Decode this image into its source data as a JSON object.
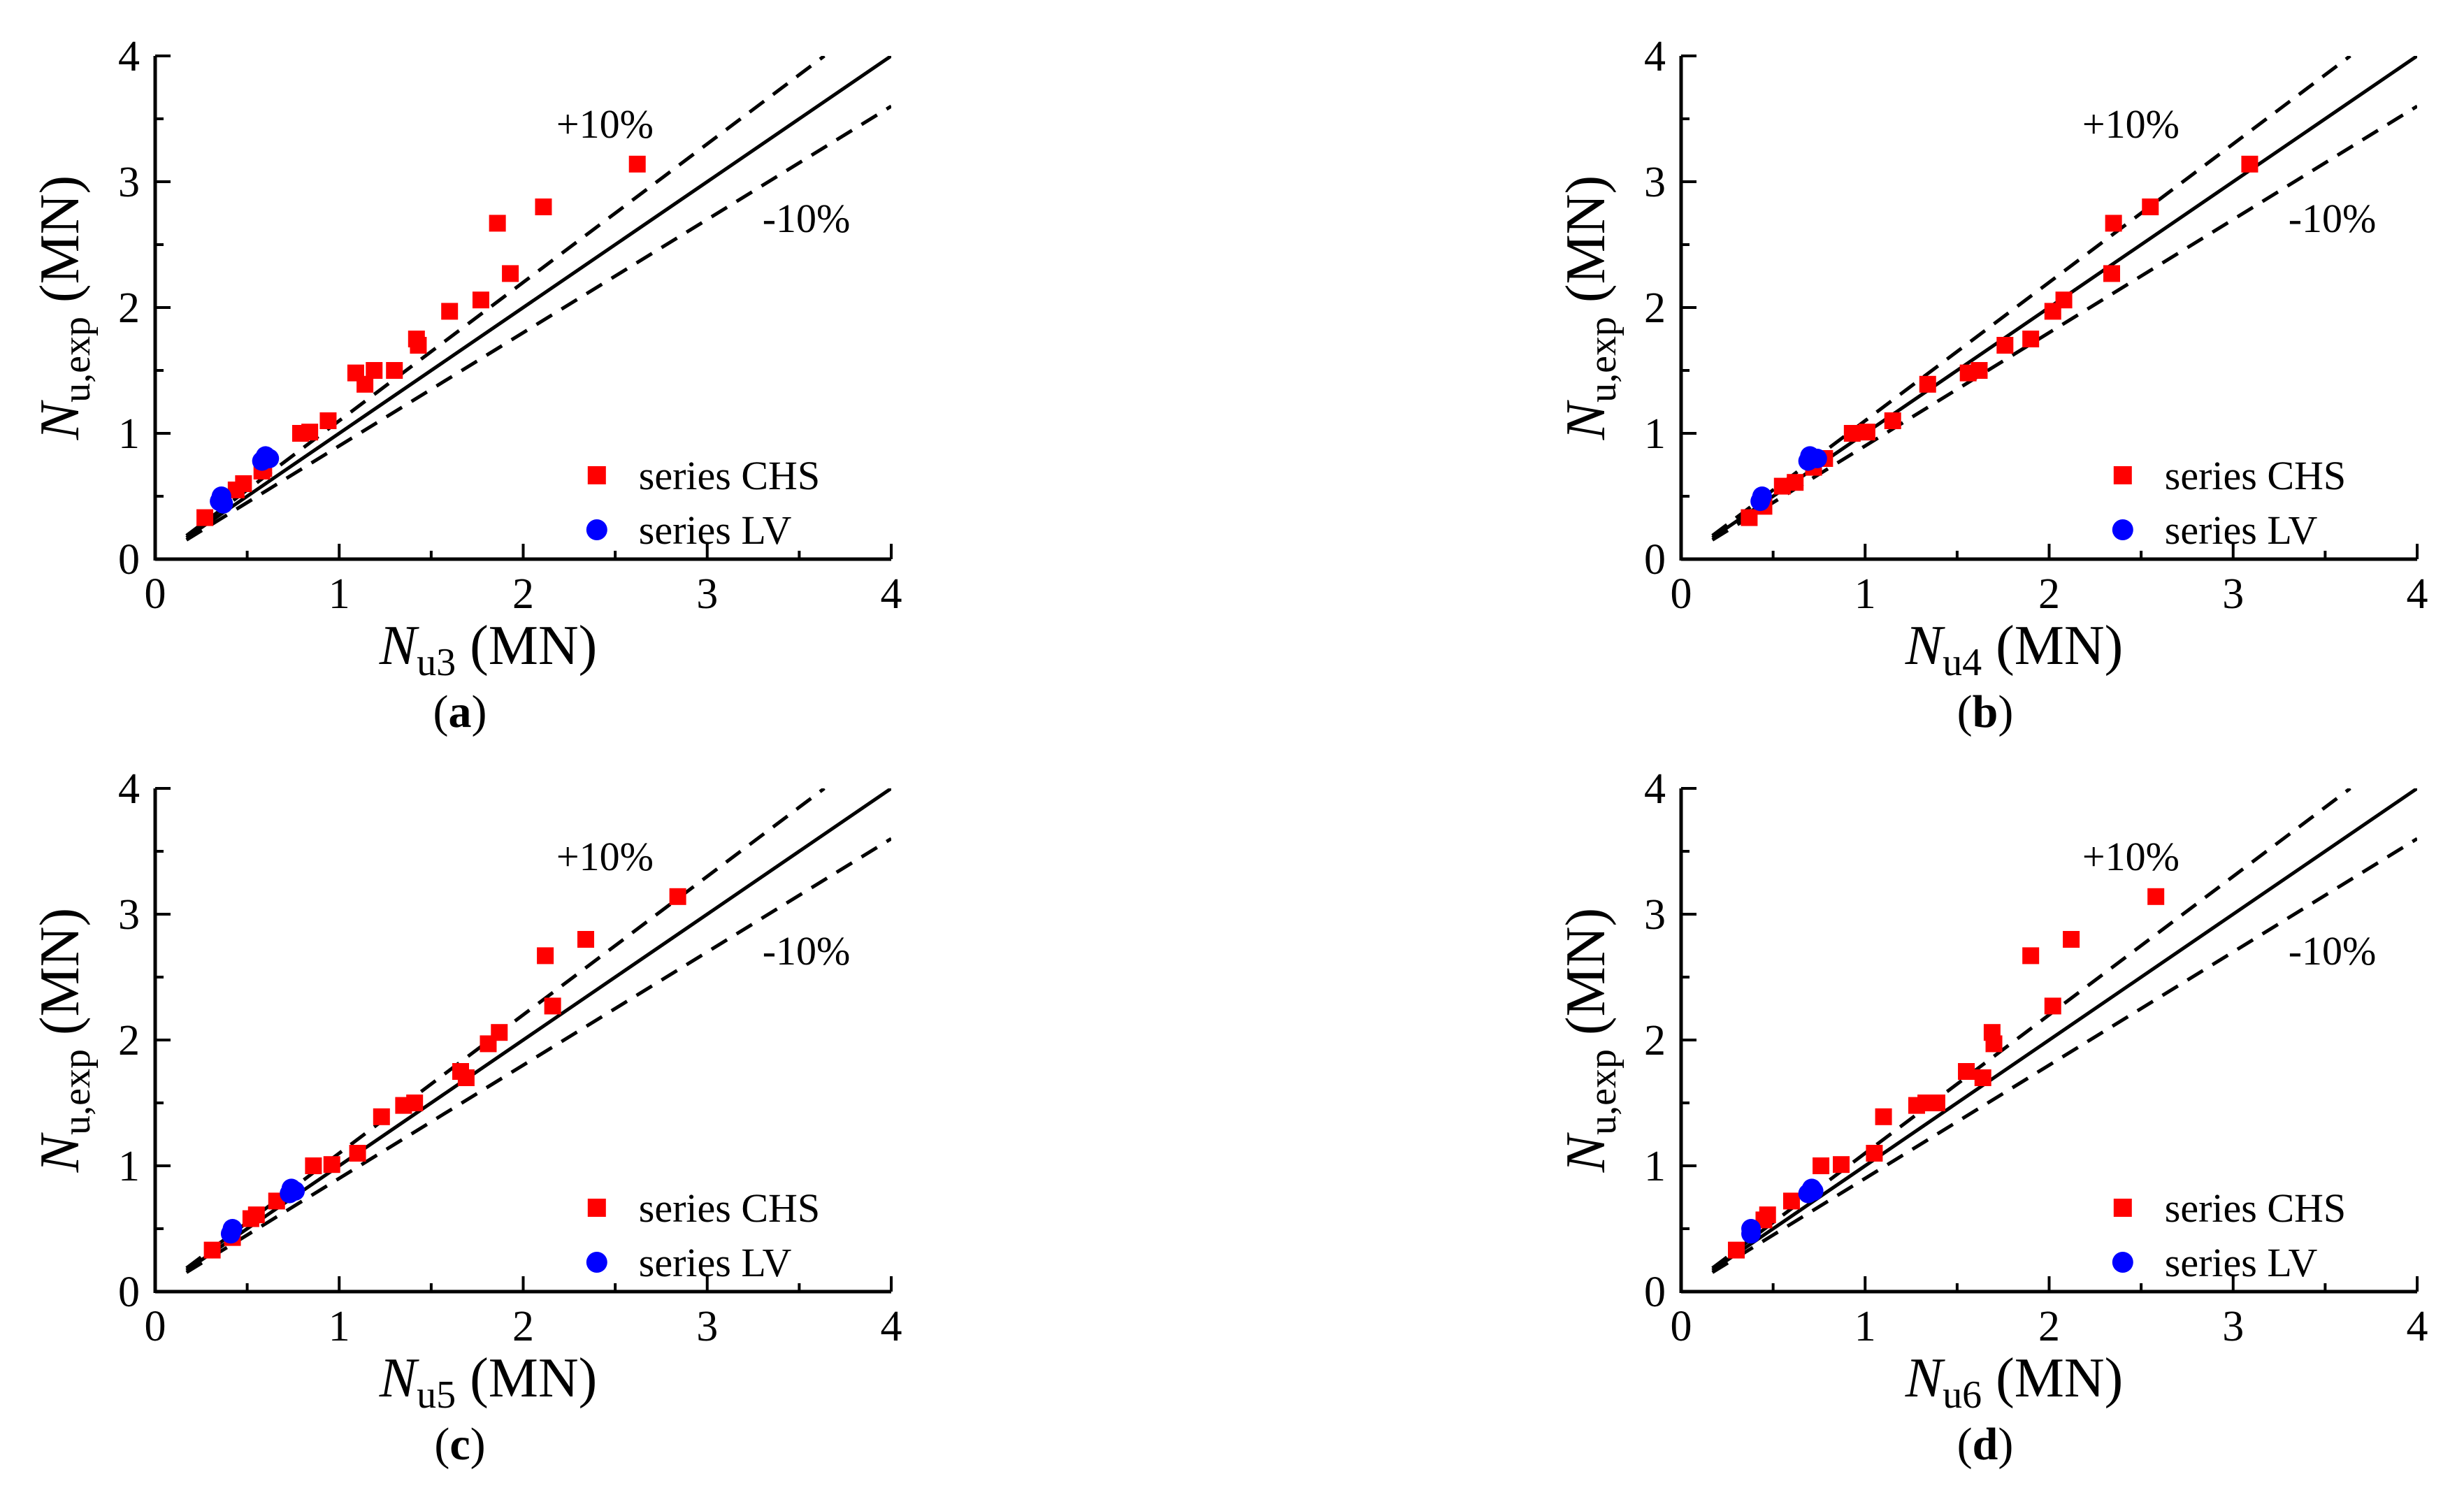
{
  "figure": {
    "panels_count": 4
  },
  "chart_data": [
    {
      "panel": "a",
      "type": "scatter",
      "caption": "a",
      "xlabel": {
        "main": "N",
        "sub": "u3",
        "unit": "(MN)"
      },
      "ylabel": {
        "main": "N",
        "sub": "u,exp",
        "unit": "(MN)"
      },
      "xlim": [
        0,
        4
      ],
      "ylim": [
        0,
        4
      ],
      "xticks": [
        "0",
        "1",
        "2",
        "3",
        "4"
      ],
      "yticks": [
        "0",
        "1",
        "2",
        "3",
        "4"
      ],
      "reference_lines": [
        {
          "name": "equality",
          "slope": 1.0,
          "style": "solid"
        },
        {
          "name": "plus10",
          "slope": 1.1,
          "style": "dashed",
          "label": "+10%"
        },
        {
          "name": "minus10",
          "slope": 0.9,
          "style": "dashed",
          "label": "-10%"
        }
      ],
      "legend_position": "bottom-right",
      "series": [
        {
          "name": "series CHS",
          "marker": "square",
          "color": "#ff0000",
          "points": [
            [
              0.27,
              0.33
            ],
            [
              0.44,
              0.55
            ],
            [
              0.48,
              0.6
            ],
            [
              0.58,
              0.7
            ],
            [
              0.59,
              0.72
            ],
            [
              0.79,
              1.0
            ],
            [
              0.84,
              1.01
            ],
            [
              0.94,
              1.1
            ],
            [
              1.09,
              1.48
            ],
            [
              1.14,
              1.39
            ],
            [
              1.19,
              1.5
            ],
            [
              1.3,
              1.5
            ],
            [
              1.42,
              1.75
            ],
            [
              1.43,
              1.7
            ],
            [
              1.6,
              1.97
            ],
            [
              1.77,
              2.06
            ],
            [
              1.86,
              2.67
            ],
            [
              1.93,
              2.27
            ],
            [
              2.11,
              2.8
            ],
            [
              2.62,
              3.14
            ]
          ]
        },
        {
          "name": "series LV",
          "marker": "circle",
          "color": "#0000ff",
          "points": [
            [
              0.35,
              0.46
            ],
            [
              0.36,
              0.5
            ],
            [
              0.37,
              0.44
            ],
            [
              0.58,
              0.78
            ],
            [
              0.6,
              0.82
            ],
            [
              0.62,
              0.8
            ]
          ]
        }
      ],
      "annotations": [
        "+10%",
        "-10%"
      ]
    },
    {
      "panel": "b",
      "type": "scatter",
      "caption": "b",
      "xlabel": {
        "main": "N",
        "sub": "u4",
        "unit": "(MN)"
      },
      "ylabel": {
        "main": "N",
        "sub": "u,exp",
        "unit": "(MN)"
      },
      "xlim": [
        0,
        4
      ],
      "ylim": [
        0,
        4
      ],
      "xticks": [
        "0",
        "1",
        "2",
        "3",
        "4"
      ],
      "yticks": [
        "0",
        "1",
        "2",
        "3",
        "4"
      ],
      "reference_lines": [
        {
          "name": "equality",
          "slope": 1.0,
          "style": "solid"
        },
        {
          "name": "plus10",
          "slope": 1.1,
          "style": "dashed",
          "label": "+10%"
        },
        {
          "name": "minus10",
          "slope": 0.9,
          "style": "dashed",
          "label": "-10%"
        }
      ],
      "legend_position": "bottom-right",
      "series": [
        {
          "name": "series CHS",
          "marker": "square",
          "color": "#ff0000",
          "points": [
            [
              0.37,
              0.33
            ],
            [
              0.45,
              0.42
            ],
            [
              0.55,
              0.58
            ],
            [
              0.62,
              0.61
            ],
            [
              0.72,
              0.73
            ],
            [
              0.78,
              0.8
            ],
            [
              0.93,
              1.0
            ],
            [
              1.01,
              1.01
            ],
            [
              1.15,
              1.1
            ],
            [
              1.34,
              1.39
            ],
            [
              1.56,
              1.48
            ],
            [
              1.62,
              1.5
            ],
            [
              1.76,
              1.7
            ],
            [
              1.9,
              1.75
            ],
            [
              2.02,
              1.97
            ],
            [
              2.08,
              2.06
            ],
            [
              2.34,
              2.27
            ],
            [
              2.35,
              2.67
            ],
            [
              2.55,
              2.8
            ],
            [
              3.09,
              3.14
            ]
          ]
        },
        {
          "name": "series LV",
          "marker": "circle",
          "color": "#0000ff",
          "points": [
            [
              0.43,
              0.46
            ],
            [
              0.44,
              0.5
            ],
            [
              0.69,
              0.78
            ],
            [
              0.7,
              0.82
            ],
            [
              0.74,
              0.8
            ]
          ]
        }
      ],
      "annotations": [
        "+10%",
        "-10%"
      ]
    },
    {
      "panel": "c",
      "type": "scatter",
      "caption": "c",
      "xlabel": {
        "main": "N",
        "sub": "u5",
        "unit": "(MN)"
      },
      "ylabel": {
        "main": "N",
        "sub": "u,exp",
        "unit": "(MN)"
      },
      "xlim": [
        0,
        4
      ],
      "ylim": [
        0,
        4
      ],
      "xticks": [
        "0",
        "1",
        "2",
        "3",
        "4"
      ],
      "yticks": [
        "0",
        "1",
        "2",
        "3",
        "4"
      ],
      "reference_lines": [
        {
          "name": "equality",
          "slope": 1.0,
          "style": "solid"
        },
        {
          "name": "plus10",
          "slope": 1.1,
          "style": "dashed",
          "label": "+10%"
        },
        {
          "name": "minus10",
          "slope": 0.9,
          "style": "dashed",
          "label": "-10%"
        }
      ],
      "legend_position": "bottom-right",
      "series": [
        {
          "name": "series CHS",
          "marker": "square",
          "color": "#ff0000",
          "points": [
            [
              0.31,
              0.33
            ],
            [
              0.42,
              0.43
            ],
            [
              0.52,
              0.58
            ],
            [
              0.55,
              0.61
            ],
            [
              0.66,
              0.72
            ],
            [
              0.86,
              1.0
            ],
            [
              0.96,
              1.01
            ],
            [
              1.1,
              1.1
            ],
            [
              1.23,
              1.39
            ],
            [
              1.35,
              1.48
            ],
            [
              1.41,
              1.5
            ],
            [
              1.66,
              1.75
            ],
            [
              1.69,
              1.7
            ],
            [
              1.81,
              1.97
            ],
            [
              1.87,
              2.06
            ],
            [
              2.12,
              2.67
            ],
            [
              2.16,
              2.27
            ],
            [
              2.34,
              2.8
            ],
            [
              2.84,
              3.14
            ]
          ]
        },
        {
          "name": "series LV",
          "marker": "circle",
          "color": "#0000ff",
          "points": [
            [
              0.41,
              0.46
            ],
            [
              0.42,
              0.5
            ],
            [
              0.73,
              0.78
            ],
            [
              0.74,
              0.82
            ],
            [
              0.76,
              0.8
            ]
          ]
        }
      ],
      "annotations": [
        "+10%",
        "-10%"
      ]
    },
    {
      "panel": "d",
      "type": "scatter",
      "caption": "d",
      "xlabel": {
        "main": "N",
        "sub": "u6",
        "unit": "(MN)"
      },
      "ylabel": {
        "main": "N",
        "sub": "u,exp",
        "unit": "(MN)"
      },
      "xlim": [
        0,
        4
      ],
      "ylim": [
        0,
        4
      ],
      "xticks": [
        "0",
        "1",
        "2",
        "3",
        "4"
      ],
      "yticks": [
        "0",
        "1",
        "2",
        "3",
        "4"
      ],
      "reference_lines": [
        {
          "name": "equality",
          "slope": 1.0,
          "style": "solid"
        },
        {
          "name": "plus10",
          "slope": 1.1,
          "style": "dashed",
          "label": "+10%"
        },
        {
          "name": "minus10",
          "slope": 0.9,
          "style": "dashed",
          "label": "-10%"
        }
      ],
      "legend_position": "bottom-right",
      "series": [
        {
          "name": "series CHS",
          "marker": "square",
          "color": "#ff0000",
          "points": [
            [
              0.3,
              0.33
            ],
            [
              0.45,
              0.57
            ],
            [
              0.47,
              0.61
            ],
            [
              0.6,
              0.72
            ],
            [
              0.76,
              1.0
            ],
            [
              0.87,
              1.01
            ],
            [
              1.05,
              1.1
            ],
            [
              1.1,
              1.39
            ],
            [
              1.28,
              1.48
            ],
            [
              1.33,
              1.5
            ],
            [
              1.39,
              1.5
            ],
            [
              1.55,
              1.75
            ],
            [
              1.64,
              1.7
            ],
            [
              1.69,
              2.06
            ],
            [
              1.7,
              1.97
            ],
            [
              1.9,
              2.67
            ],
            [
              2.02,
              2.27
            ],
            [
              2.12,
              2.8
            ],
            [
              2.58,
              3.14
            ]
          ]
        },
        {
          "name": "series LV",
          "marker": "circle",
          "color": "#0000ff",
          "points": [
            [
              0.38,
              0.46
            ],
            [
              0.38,
              0.5
            ],
            [
              0.69,
              0.78
            ],
            [
              0.71,
              0.82
            ],
            [
              0.72,
              0.8
            ]
          ]
        }
      ],
      "annotations": [
        "+10%",
        "-10%"
      ]
    }
  ]
}
